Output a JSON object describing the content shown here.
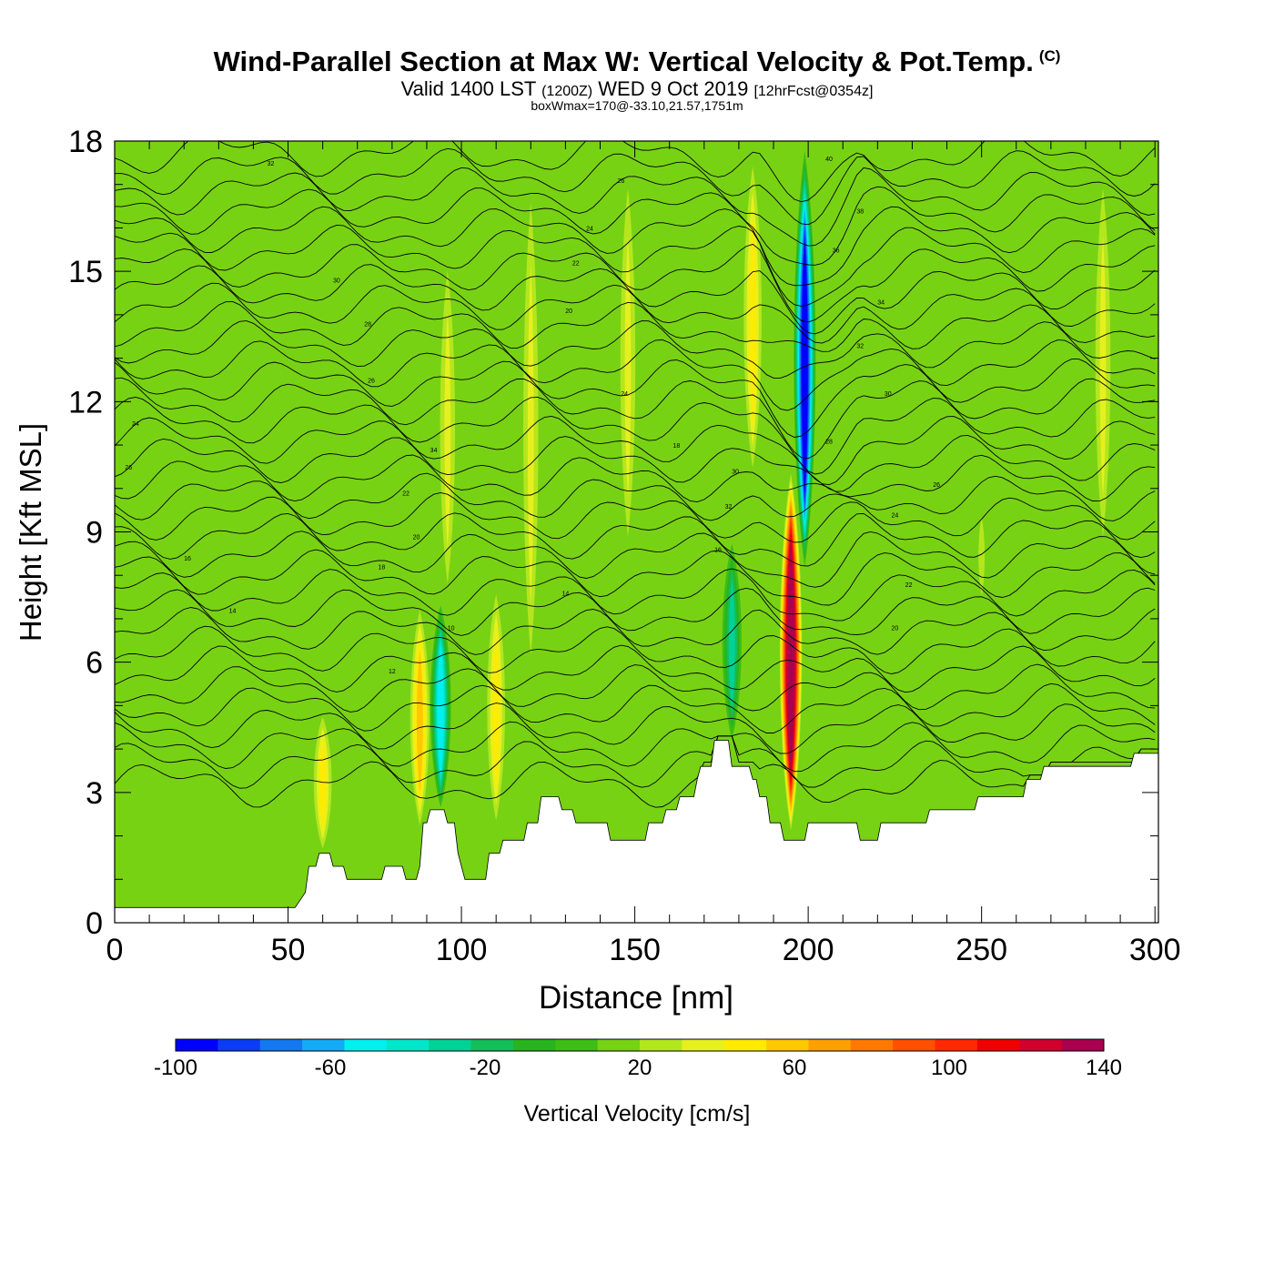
{
  "header": {
    "title": "Wind-Parallel Section at Max W: Vertical Velocity & Pot.Temp.",
    "copyright": "(C)",
    "valid_prefix": "Valid 1400 LST",
    "valid_utc": "(1200Z)",
    "valid_date": "WED 9 Oct 2019",
    "forecast": "[12hrFcst@0354z]",
    "box_info": "boxWmax=170@-33.10,21.57,1751m"
  },
  "colorbar": {
    "title": "Vertical Velocity [cm/s]",
    "tick_labels": [
      "-100",
      "-60",
      "-20",
      "20",
      "60",
      "100",
      "140"
    ],
    "min": -100,
    "max": 140,
    "step": 10,
    "colors": [
      "#0000ff",
      "#0a3cf5",
      "#1478f0",
      "#14aaf5",
      "#00f0f0",
      "#00e6c8",
      "#00d296",
      "#14be5a",
      "#28b41e",
      "#3cbe14",
      "#78d214",
      "#b4e61e",
      "#e6f01e",
      "#ffeb00",
      "#ffc800",
      "#ffa000",
      "#ff7800",
      "#ff5000",
      "#ff2800",
      "#f00000",
      "#d2002d",
      "#aa0050"
    ]
  },
  "chart_data": {
    "type": "heatmap",
    "title": "Wind-Parallel Section at Max W: Vertical Velocity & Pot.Temp.",
    "xlabel": "Distance [nm]",
    "ylabel": "Height [Kft MSL]",
    "xlim": [
      0,
      301
    ],
    "ylim": [
      0,
      18
    ],
    "x_ticks": [
      0,
      50,
      100,
      150,
      200,
      250,
      300
    ],
    "y_ticks": [
      0,
      3,
      6,
      9,
      12,
      15,
      18
    ],
    "background_value": 5,
    "vertical_velocity_features": [
      {
        "x": 195,
        "y_bottom": 2,
        "y_top": 10.5,
        "peak": 125
      },
      {
        "x": 199,
        "y_bottom": 8,
        "y_top": 18,
        "peak": -95
      },
      {
        "x": 94,
        "y_bottom": 2.5,
        "y_top": 7.5,
        "peak": -55
      },
      {
        "x": 88,
        "y_bottom": 2,
        "y_top": 7.5,
        "peak": 40
      },
      {
        "x": 110,
        "y_bottom": 2,
        "y_top": 8,
        "peak": 30
      },
      {
        "x": 96,
        "y_bottom": 7,
        "y_top": 16,
        "peak": 25
      },
      {
        "x": 120,
        "y_bottom": 5,
        "y_top": 18,
        "peak": 25
      },
      {
        "x": 184,
        "y_bottom": 10,
        "y_top": 18,
        "peak": 35
      },
      {
        "x": 178,
        "y_bottom": 4,
        "y_top": 9,
        "peak": -35
      },
      {
        "x": 148,
        "y_bottom": 8,
        "y_top": 18,
        "peak": 20
      },
      {
        "x": 285,
        "y_bottom": 8,
        "y_top": 18,
        "peak": 25
      },
      {
        "x": 60,
        "y_bottom": 1.5,
        "y_top": 5,
        "peak": 30
      },
      {
        "x": 250,
        "y_bottom": 7,
        "y_top": 10,
        "peak": 18
      }
    ],
    "terrain": {
      "x": [
        0,
        50,
        52,
        55,
        56,
        58,
        59,
        62,
        63,
        66,
        67,
        70,
        71,
        77,
        78,
        83,
        84,
        86,
        87,
        88,
        89,
        90,
        91,
        95,
        96,
        98,
        99,
        100,
        101,
        107,
        108,
        111,
        112,
        118,
        119,
        122,
        123,
        128,
        129,
        132,
        133,
        142,
        143,
        153,
        154,
        158,
        159,
        162,
        163,
        167,
        168,
        169,
        170,
        172,
        173,
        177,
        178,
        183,
        184,
        185,
        186,
        188,
        189,
        192,
        193,
        199,
        200,
        205,
        206,
        214,
        215,
        220,
        221,
        234,
        235,
        248,
        249,
        262,
        263,
        267,
        268,
        273,
        274,
        293,
        294,
        301
      ],
      "height": [
        0.35,
        0.35,
        0.35,
        0.7,
        1.3,
        1.3,
        1.6,
        1.6,
        1.3,
        1.3,
        1.0,
        1.0,
        1.0,
        1.0,
        1.3,
        1.3,
        1.0,
        1.0,
        1.0,
        1.3,
        2.3,
        2.3,
        2.6,
        2.6,
        2.3,
        2.3,
        1.6,
        1.3,
        1.0,
        1.0,
        1.6,
        1.6,
        1.9,
        1.9,
        2.3,
        2.3,
        2.9,
        2.9,
        2.6,
        2.6,
        2.3,
        2.3,
        1.9,
        1.9,
        2.3,
        2.3,
        2.6,
        2.6,
        2.9,
        2.9,
        3.3,
        3.6,
        3.6,
        3.6,
        4.2,
        4.2,
        3.6,
        3.6,
        3.3,
        3.3,
        2.9,
        2.9,
        2.3,
        2.3,
        1.9,
        1.9,
        2.3,
        2.3,
        2.3,
        2.3,
        1.9,
        1.9,
        2.3,
        2.3,
        2.6,
        2.6,
        2.9,
        2.9,
        3.3,
        3.3,
        3.6,
        3.6,
        3.6,
        3.6,
        3.9,
        3.9
      ]
    },
    "isentropes": [
      {
        "label": "14",
        "x": 34,
        "y": 7.2
      },
      {
        "label": "16",
        "x": 21,
        "y": 8.4
      },
      {
        "label": "18",
        "x": 77,
        "y": 8.2
      },
      {
        "label": "20",
        "x": 87,
        "y": 8.9
      },
      {
        "label": "22",
        "x": 84,
        "y": 9.9
      },
      {
        "label": "24",
        "x": 6,
        "y": 11.5
      },
      {
        "label": "26",
        "x": 4,
        "y": 10.5
      },
      {
        "label": "26",
        "x": 74,
        "y": 12.5
      },
      {
        "label": "28",
        "x": 73,
        "y": 13.8
      },
      {
        "label": "30",
        "x": 64,
        "y": 14.8
      },
      {
        "label": "32",
        "x": 45,
        "y": 17.5
      },
      {
        "label": "34",
        "x": 92,
        "y": 10.9
      },
      {
        "label": "10",
        "x": 97,
        "y": 6.8
      },
      {
        "label": "12",
        "x": 80,
        "y": 5.8
      },
      {
        "label": "14",
        "x": 130,
        "y": 7.6
      },
      {
        "label": "16",
        "x": 174,
        "y": 8.6
      },
      {
        "label": "18",
        "x": 162,
        "y": 11.0
      },
      {
        "label": "20",
        "x": 131,
        "y": 14.1
      },
      {
        "label": "22",
        "x": 133,
        "y": 15.2
      },
      {
        "label": "24",
        "x": 137,
        "y": 16.0
      },
      {
        "label": "24",
        "x": 147,
        "y": 12.2
      },
      {
        "label": "26",
        "x": 146,
        "y": 17.1
      },
      {
        "label": "30",
        "x": 179,
        "y": 10.4
      },
      {
        "label": "32",
        "x": 177,
        "y": 9.6
      },
      {
        "label": "40",
        "x": 206,
        "y": 17.6
      },
      {
        "label": "38",
        "x": 215,
        "y": 16.4
      },
      {
        "label": "36",
        "x": 208,
        "y": 15.5
      },
      {
        "label": "34",
        "x": 221,
        "y": 14.3
      },
      {
        "label": "32",
        "x": 215,
        "y": 13.3
      },
      {
        "label": "30",
        "x": 223,
        "y": 12.2
      },
      {
        "label": "28",
        "x": 206,
        "y": 11.1
      },
      {
        "label": "26",
        "x": 237,
        "y": 10.1
      },
      {
        "label": "24",
        "x": 225,
        "y": 9.4
      },
      {
        "label": "22",
        "x": 229,
        "y": 7.8
      },
      {
        "label": "20",
        "x": 225,
        "y": 6.8
      }
    ]
  }
}
